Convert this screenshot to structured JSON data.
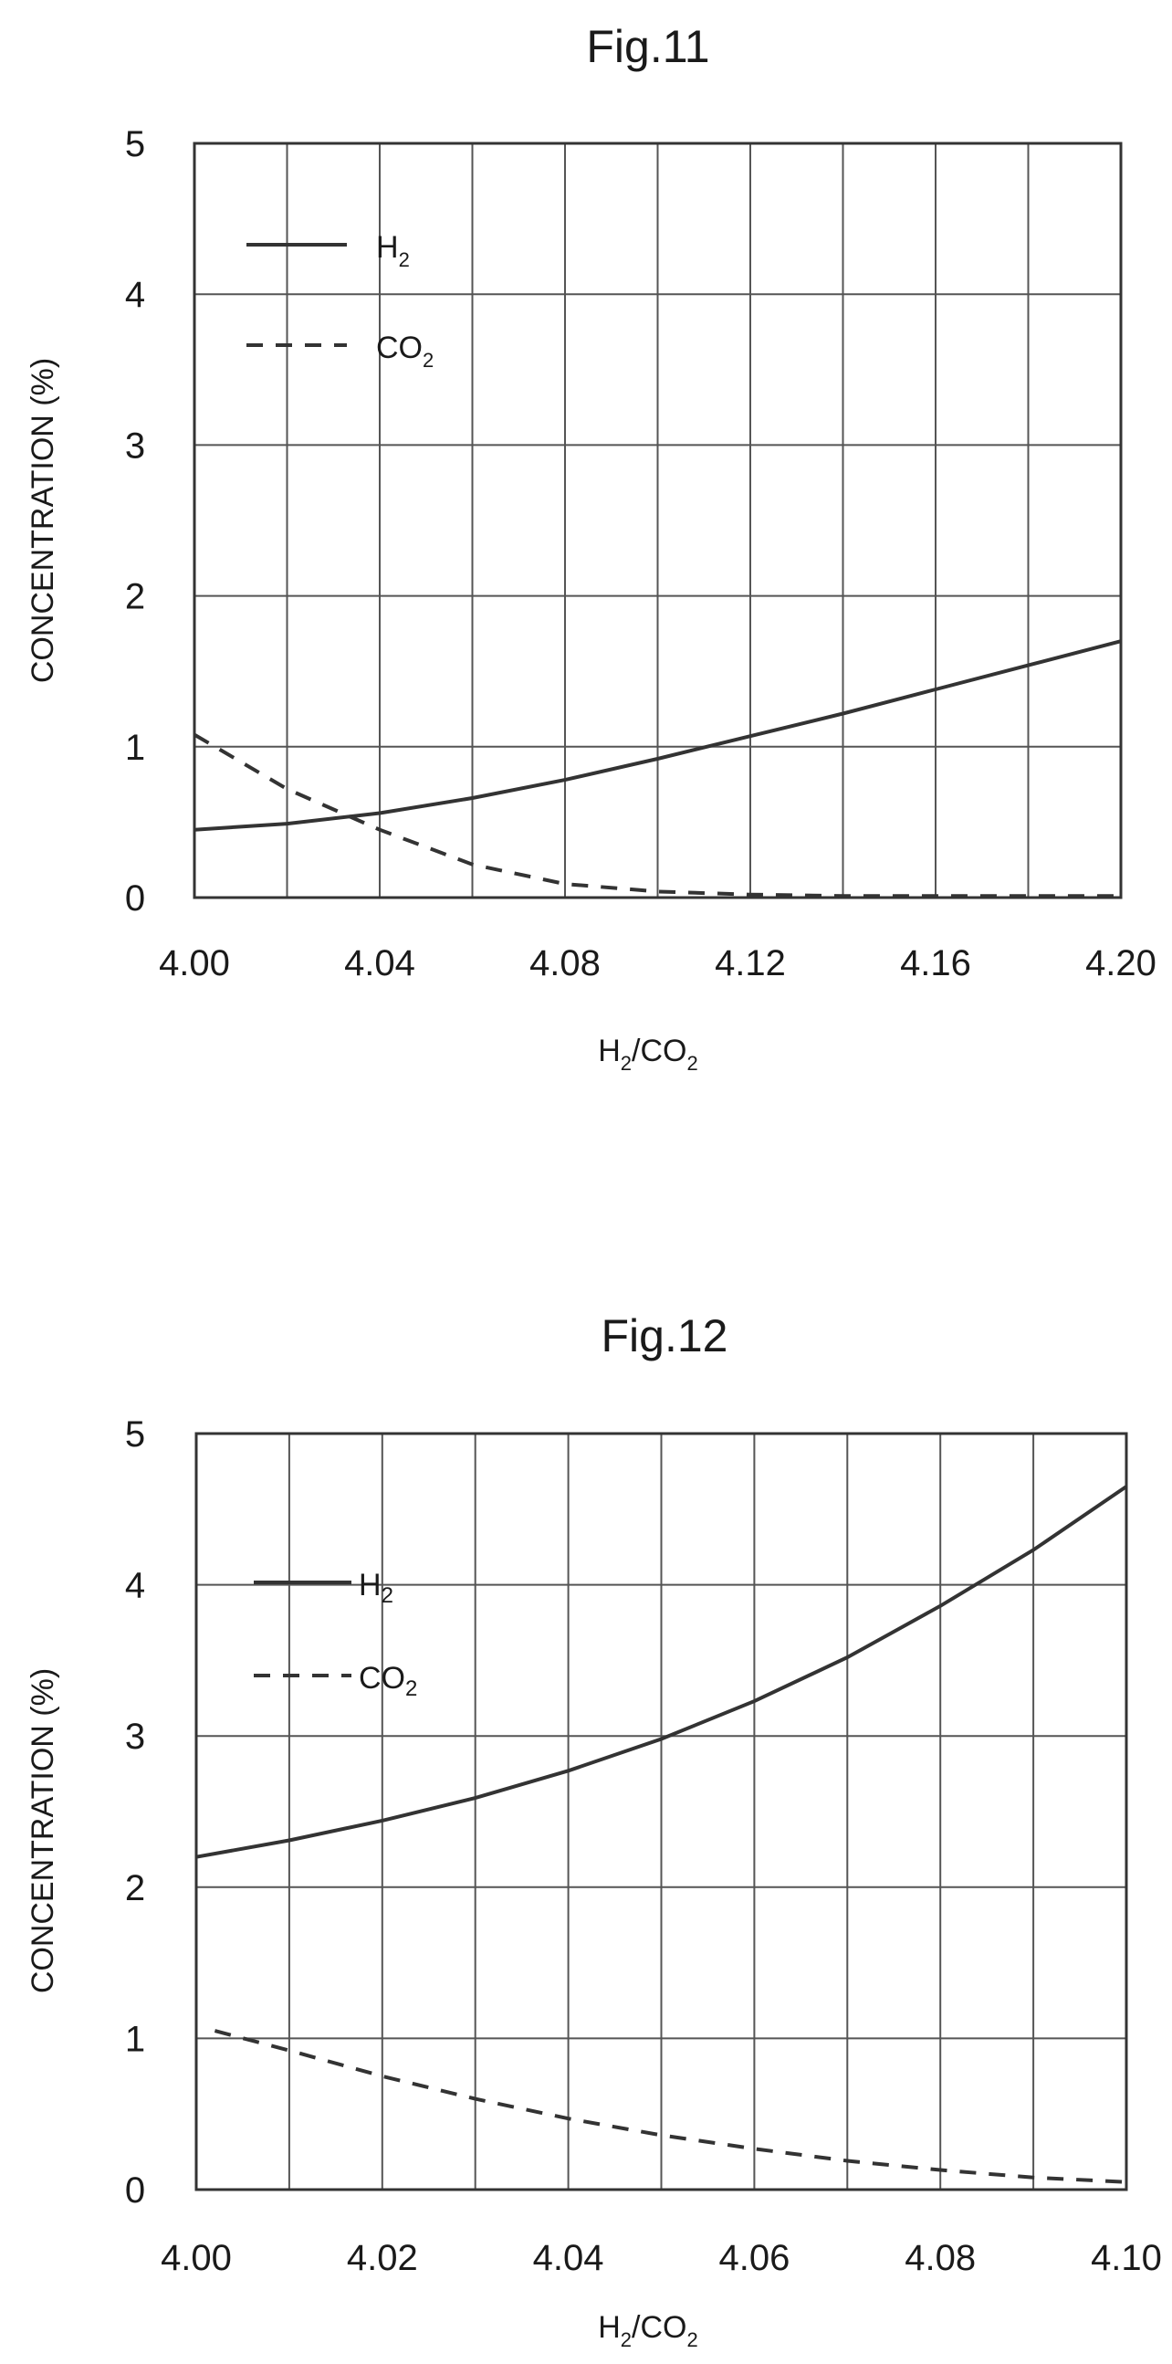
{
  "chart_data": [
    {
      "type": "line",
      "title": "Fig.11",
      "xlabel": "H2/CO2",
      "ylabel": "CONCENTRATION (%)",
      "xlim": [
        4.0,
        4.2
      ],
      "ylim": [
        0,
        5
      ],
      "x_ticks": [
        "4.00",
        "4.04",
        "4.08",
        "4.12",
        "4.16",
        "4.20"
      ],
      "x_tick_values": [
        4.0,
        4.04,
        4.08,
        4.12,
        4.16,
        4.2
      ],
      "x_grid_step": 0.02,
      "y_ticks": [
        "0",
        "1",
        "2",
        "3",
        "4",
        "5"
      ],
      "y_tick_values": [
        0,
        1,
        2,
        3,
        4,
        5
      ],
      "grid": true,
      "legend_position": "top-left",
      "series": [
        {
          "name": "H2",
          "style": "solid",
          "x": [
            4.0,
            4.02,
            4.04,
            4.06,
            4.08,
            4.1,
            4.12,
            4.14,
            4.16,
            4.18,
            4.2
          ],
          "y": [
            0.45,
            0.49,
            0.56,
            0.66,
            0.78,
            0.92,
            1.07,
            1.22,
            1.38,
            1.54,
            1.7
          ]
        },
        {
          "name": "CO2",
          "style": "dashed",
          "x": [
            4.0,
            4.02,
            4.04,
            4.06,
            4.08,
            4.1,
            4.12,
            4.14,
            4.16,
            4.18,
            4.2
          ],
          "y": [
            1.08,
            0.72,
            0.45,
            0.22,
            0.09,
            0.04,
            0.02,
            0.01,
            0.01,
            0.01,
            0.01
          ]
        }
      ]
    },
    {
      "type": "line",
      "title": "Fig.12",
      "xlabel": "H2/CO2",
      "ylabel": "CONCENTRATION (%)",
      "xlim": [
        4.0,
        4.1
      ],
      "ylim": [
        0,
        5
      ],
      "x_ticks": [
        "4.00",
        "4.02",
        "4.04",
        "4.06",
        "4.08",
        "4.10"
      ],
      "x_tick_values": [
        4.0,
        4.02,
        4.04,
        4.06,
        4.08,
        4.1
      ],
      "x_grid_step": 0.01,
      "y_ticks": [
        "0",
        "1",
        "2",
        "3",
        "4",
        "5"
      ],
      "y_tick_values": [
        0,
        1,
        2,
        3,
        4,
        5
      ],
      "grid": true,
      "legend_position": "top-left",
      "series": [
        {
          "name": "H2",
          "style": "solid",
          "x": [
            4.0,
            4.01,
            4.02,
            4.03,
            4.04,
            4.05,
            4.06,
            4.07,
            4.08,
            4.09,
            4.1
          ],
          "y": [
            2.2,
            2.31,
            2.44,
            2.59,
            2.77,
            2.98,
            3.23,
            3.52,
            3.86,
            4.23,
            4.65
          ]
        },
        {
          "name": "CO2",
          "style": "dashed",
          "x": [
            4.002,
            4.01,
            4.02,
            4.03,
            4.04,
            4.05,
            4.06,
            4.07,
            4.08,
            4.09,
            4.1
          ],
          "y": [
            1.05,
            0.92,
            0.75,
            0.6,
            0.47,
            0.36,
            0.27,
            0.19,
            0.13,
            0.08,
            0.05
          ]
        }
      ]
    }
  ]
}
